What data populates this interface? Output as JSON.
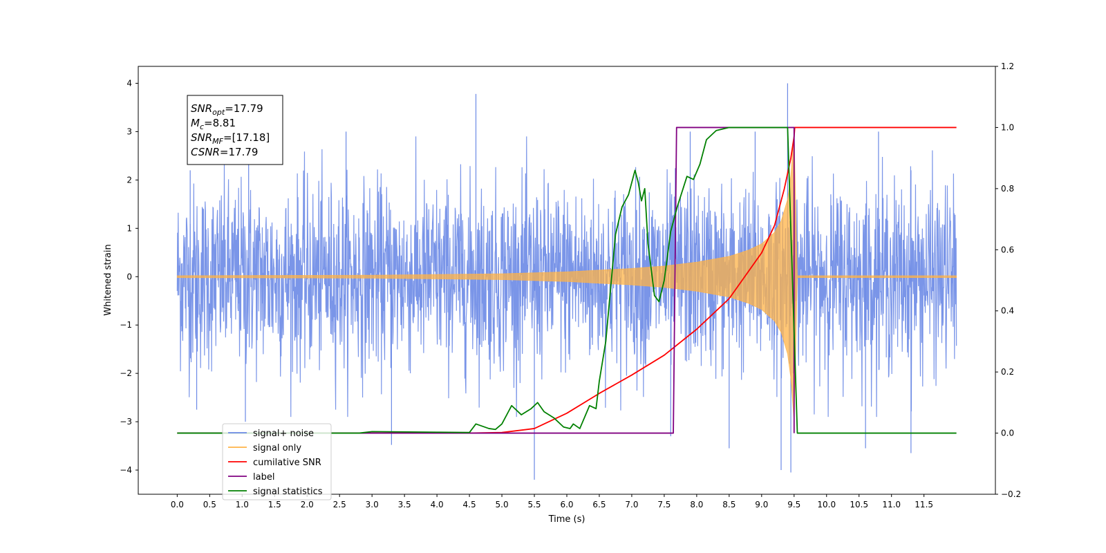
{
  "chart_data": {
    "type": "line",
    "title": "",
    "xlabel": "Time (s)",
    "ylabel": "Whitened strain",
    "y2label": "",
    "xlim": [
      -0.6,
      12.6
    ],
    "ylim": [
      -4.5,
      4.35
    ],
    "y2lim": [
      -0.2,
      1.2
    ],
    "xticks": [
      "0.0",
      "0.5",
      "1.0",
      "1.5",
      "2.0",
      "2.5",
      "3.0",
      "3.5",
      "4.0",
      "4.5",
      "5.0",
      "5.5",
      "6.0",
      "6.5",
      "7.0",
      "7.5",
      "8.0",
      "8.5",
      "9.0",
      "9.5",
      "10.0",
      "10.5",
      "11.0",
      "11.5"
    ],
    "yticks": [
      "−4",
      "−3",
      "−2",
      "−1",
      "0",
      "1",
      "2",
      "3",
      "4"
    ],
    "y2ticks": [
      "−0.2",
      "0.0",
      "0.2",
      "0.4",
      "0.6",
      "0.8",
      "1.0",
      "1.2"
    ],
    "grid": false,
    "legend_position": "lower-left",
    "annotation": {
      "lines": [
        {
          "sym": "SNR",
          "sub": "opt",
          "value": "=17.79"
        },
        {
          "sym": "M",
          "sub": "c",
          "value": "=8.81"
        },
        {
          "sym": "SNR",
          "sub": "MF",
          "value": "=[17.18]"
        },
        {
          "sym": "CSNR",
          "sub": "",
          "value": "=17.79"
        }
      ]
    },
    "legend": [
      {
        "label": "signal+ noise",
        "color": "#6b89e5"
      },
      {
        "label": "signal only",
        "color": "#ffb347"
      },
      {
        "label": "cumilative SNR",
        "color": "#ff0000"
      },
      {
        "label": "label",
        "color": "#800080"
      },
      {
        "label": "signal statistics",
        "color": "#008000"
      }
    ],
    "series": [
      {
        "name": "signal+ noise",
        "axis": "left",
        "color": "#6b89e5",
        "style": "dense noise",
        "x_range": [
          0.0,
          12.0
        ],
        "envelope": [
          -2.5,
          2.5
        ],
        "peaks_max": [
          [
            0.2,
            2.2
          ],
          [
            1.1,
            3.0
          ],
          [
            2.6,
            3.0
          ],
          [
            4.6,
            3.78
          ],
          [
            7.9,
            3.0
          ],
          [
            8.9,
            3.0
          ],
          [
            9.4,
            4.0
          ],
          [
            10.8,
            3.0
          ],
          [
            11.3,
            2.2
          ]
        ],
        "peaks_min": [
          [
            0.3,
            -2.75
          ],
          [
            1.05,
            -3.0
          ],
          [
            3.3,
            -3.48
          ],
          [
            5.5,
            -4.2
          ],
          [
            7.6,
            -3.3
          ],
          [
            8.5,
            -3.55
          ],
          [
            9.3,
            -4.0
          ],
          [
            9.45,
            -4.05
          ],
          [
            10.6,
            -3.55
          ],
          [
            11.3,
            -3.65
          ]
        ]
      },
      {
        "name": "signal only",
        "axis": "left",
        "color": "#ffb347",
        "style": "chirp envelope",
        "x": [
          0.0,
          3.0,
          5.0,
          6.0,
          7.0,
          7.5,
          8.0,
          8.5,
          8.8,
          9.0,
          9.2,
          9.3,
          9.4,
          9.45,
          9.5,
          9.55,
          12.0
        ],
        "amplitude": [
          0.02,
          0.03,
          0.06,
          0.1,
          0.17,
          0.22,
          0.3,
          0.42,
          0.55,
          0.68,
          0.92,
          1.15,
          1.6,
          2.1,
          3.0,
          0.02,
          0.02
        ]
      },
      {
        "name": "cumilative SNR",
        "axis": "right",
        "color": "#ff0000",
        "x": [
          0.0,
          4.5,
          5.0,
          5.5,
          6.0,
          6.5,
          7.0,
          7.5,
          8.0,
          8.5,
          9.0,
          9.2,
          9.35,
          9.45,
          9.5,
          9.51,
          12.0
        ],
        "values": [
          0.0,
          0.0,
          0.002,
          0.015,
          0.065,
          0.13,
          0.19,
          0.255,
          0.34,
          0.44,
          0.59,
          0.68,
          0.8,
          0.9,
          0.97,
          1.0,
          1.0
        ]
      },
      {
        "name": "label",
        "axis": "right",
        "color": "#800080",
        "x": [
          0.0,
          7.64,
          7.69,
          9.5,
          9.5
        ],
        "values": [
          0.0,
          0.0,
          1.0,
          1.0,
          0.0
        ]
      },
      {
        "name": "signal statistics",
        "axis": "right",
        "color": "#008000",
        "x": [
          0.0,
          2.8,
          3.0,
          4.0,
          4.5,
          4.6,
          4.8,
          4.9,
          5.0,
          5.1,
          5.15,
          5.3,
          5.45,
          5.55,
          5.65,
          5.8,
          5.95,
          6.05,
          6.1,
          6.2,
          6.35,
          6.45,
          6.5,
          6.6,
          6.75,
          6.85,
          6.95,
          7.05,
          7.1,
          7.15,
          7.2,
          7.25,
          7.35,
          7.42,
          7.5,
          7.6,
          7.7,
          7.85,
          7.95,
          8.05,
          8.15,
          8.3,
          8.5,
          8.6,
          9.4,
          9.55,
          9.6,
          12.0
        ],
        "values": [
          0.0,
          0.0,
          0.005,
          0.003,
          0.002,
          0.03,
          0.015,
          0.012,
          0.03,
          0.07,
          0.09,
          0.06,
          0.08,
          0.1,
          0.07,
          0.05,
          0.02,
          0.015,
          0.03,
          0.015,
          0.09,
          0.08,
          0.17,
          0.3,
          0.65,
          0.74,
          0.78,
          0.86,
          0.82,
          0.76,
          0.8,
          0.62,
          0.45,
          0.43,
          0.5,
          0.66,
          0.74,
          0.84,
          0.83,
          0.88,
          0.96,
          0.99,
          1.0,
          1.0,
          1.0,
          0.0,
          0.0,
          0.0
        ]
      }
    ]
  }
}
